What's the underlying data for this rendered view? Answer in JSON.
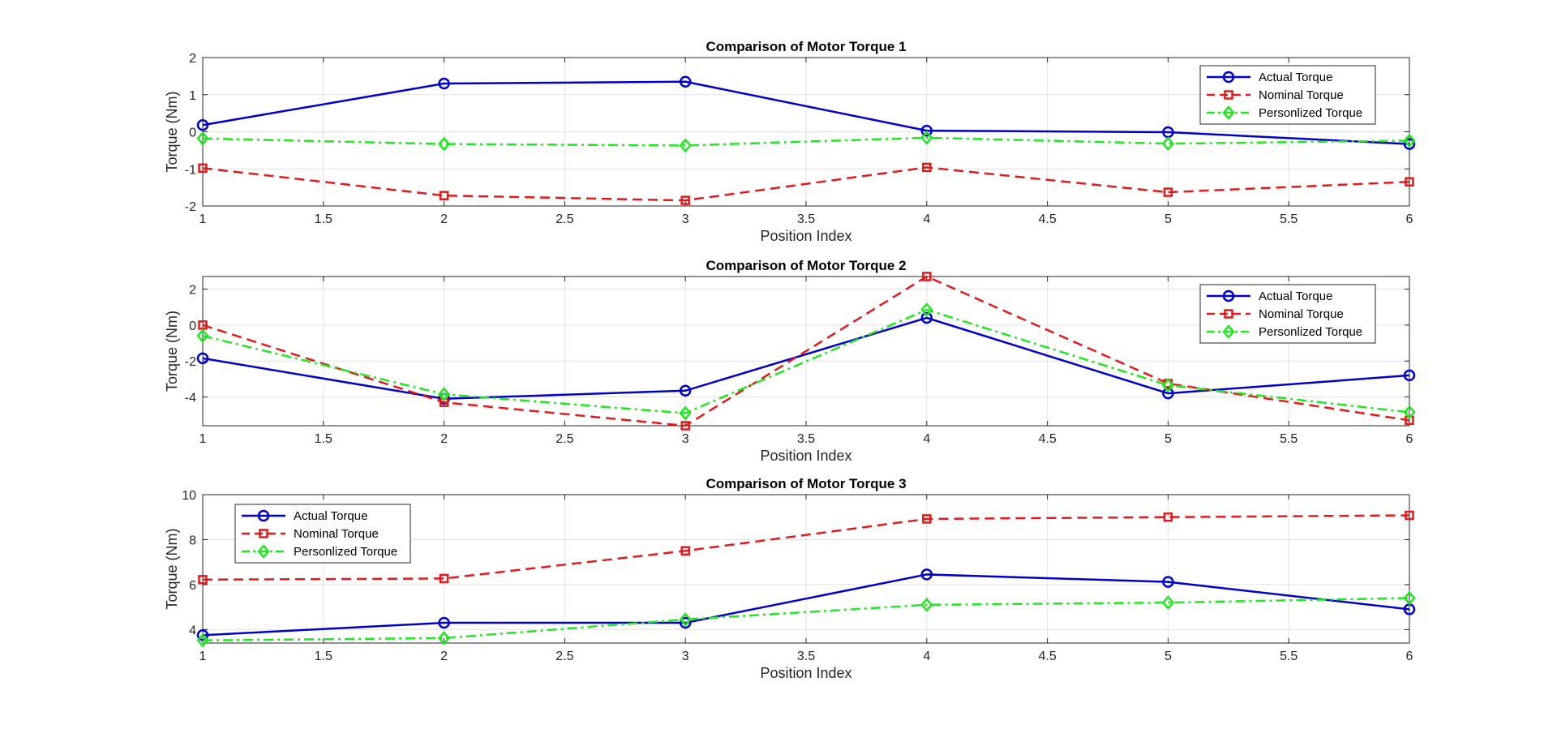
{
  "chart_data": [
    {
      "type": "line",
      "title": "Comparison of Motor Torque 1",
      "xlabel": "Position Index",
      "ylabel": "Torque (Nm)",
      "xlim": [
        1,
        6
      ],
      "ylim": [
        -2,
        2
      ],
      "xticks": [
        1,
        1.5,
        2,
        2.5,
        3,
        3.5,
        4,
        4.5,
        5,
        5.5,
        6
      ],
      "yticks": [
        -2,
        -1,
        0,
        1,
        2
      ],
      "grid": true,
      "legend": "top-right",
      "x": [
        1,
        2,
        3,
        4,
        5,
        6
      ],
      "series": [
        {
          "name": "Actual Torque",
          "color": "#0000cd",
          "marker": "circle",
          "dash": "solid",
          "values": [
            0.18,
            1.3,
            1.35,
            0.03,
            -0.01,
            -0.33
          ]
        },
        {
          "name": "Nominal Torque",
          "color": "#e31a1c",
          "marker": "square",
          "dash": "dashed",
          "values": [
            -0.98,
            -1.72,
            -1.85,
            -0.96,
            -1.63,
            -1.35
          ]
        },
        {
          "name": "Personlized Torque",
          "color": "#22e622",
          "marker": "diamond",
          "dash": "dashdot",
          "values": [
            -0.18,
            -0.33,
            -0.37,
            -0.16,
            -0.32,
            -0.24
          ]
        }
      ]
    },
    {
      "type": "line",
      "title": "Comparison of Motor Torque 2",
      "xlabel": "Position Index",
      "ylabel": "Torque (Nm)",
      "xlim": [
        1,
        6
      ],
      "ylim": [
        -5.6,
        2.7
      ],
      "xticks": [
        1,
        1.5,
        2,
        2.5,
        3,
        3.5,
        4,
        4.5,
        5,
        5.5,
        6
      ],
      "yticks": [
        -4,
        -2,
        0,
        2
      ],
      "grid": true,
      "legend": "top-right",
      "x": [
        1,
        2,
        3,
        4,
        5,
        6
      ],
      "series": [
        {
          "name": "Actual Torque",
          "color": "#0000cd",
          "marker": "circle",
          "dash": "solid",
          "values": [
            -1.85,
            -4.1,
            -3.65,
            0.4,
            -3.8,
            -2.8
          ]
        },
        {
          "name": "Nominal Torque",
          "color": "#e31a1c",
          "marker": "square",
          "dash": "dashed",
          "values": [
            0.0,
            -4.3,
            -5.6,
            2.7,
            -3.25,
            -5.3
          ]
        },
        {
          "name": "Personlized Torque",
          "color": "#22e622",
          "marker": "diamond",
          "dash": "dashdot",
          "values": [
            -0.6,
            -3.85,
            -4.9,
            0.85,
            -3.35,
            -4.85
          ]
        }
      ]
    },
    {
      "type": "line",
      "title": "Comparison of Motor Torque 3",
      "xlabel": "Position Index",
      "ylabel": "Torque (Nm)",
      "xlim": [
        1,
        6
      ],
      "ylim": [
        3.4,
        10
      ],
      "xticks": [
        1,
        1.5,
        2,
        2.5,
        3,
        3.5,
        4,
        4.5,
        5,
        5.5,
        6
      ],
      "yticks": [
        4,
        6,
        8,
        10
      ],
      "grid": true,
      "legend": "top-left",
      "x": [
        1,
        2,
        3,
        4,
        5,
        6
      ],
      "series": [
        {
          "name": "Actual Torque",
          "color": "#0000cd",
          "marker": "circle",
          "dash": "solid",
          "values": [
            3.75,
            4.3,
            4.3,
            6.45,
            6.12,
            4.9
          ]
        },
        {
          "name": "Nominal Torque",
          "color": "#e31a1c",
          "marker": "square",
          "dash": "dashed",
          "values": [
            6.22,
            6.27,
            7.5,
            8.92,
            9.0,
            9.08
          ]
        },
        {
          "name": "Personlized Torque",
          "color": "#22e622",
          "marker": "diamond",
          "dash": "dashdot",
          "values": [
            3.52,
            3.62,
            4.45,
            5.1,
            5.2,
            5.4
          ]
        }
      ]
    }
  ]
}
